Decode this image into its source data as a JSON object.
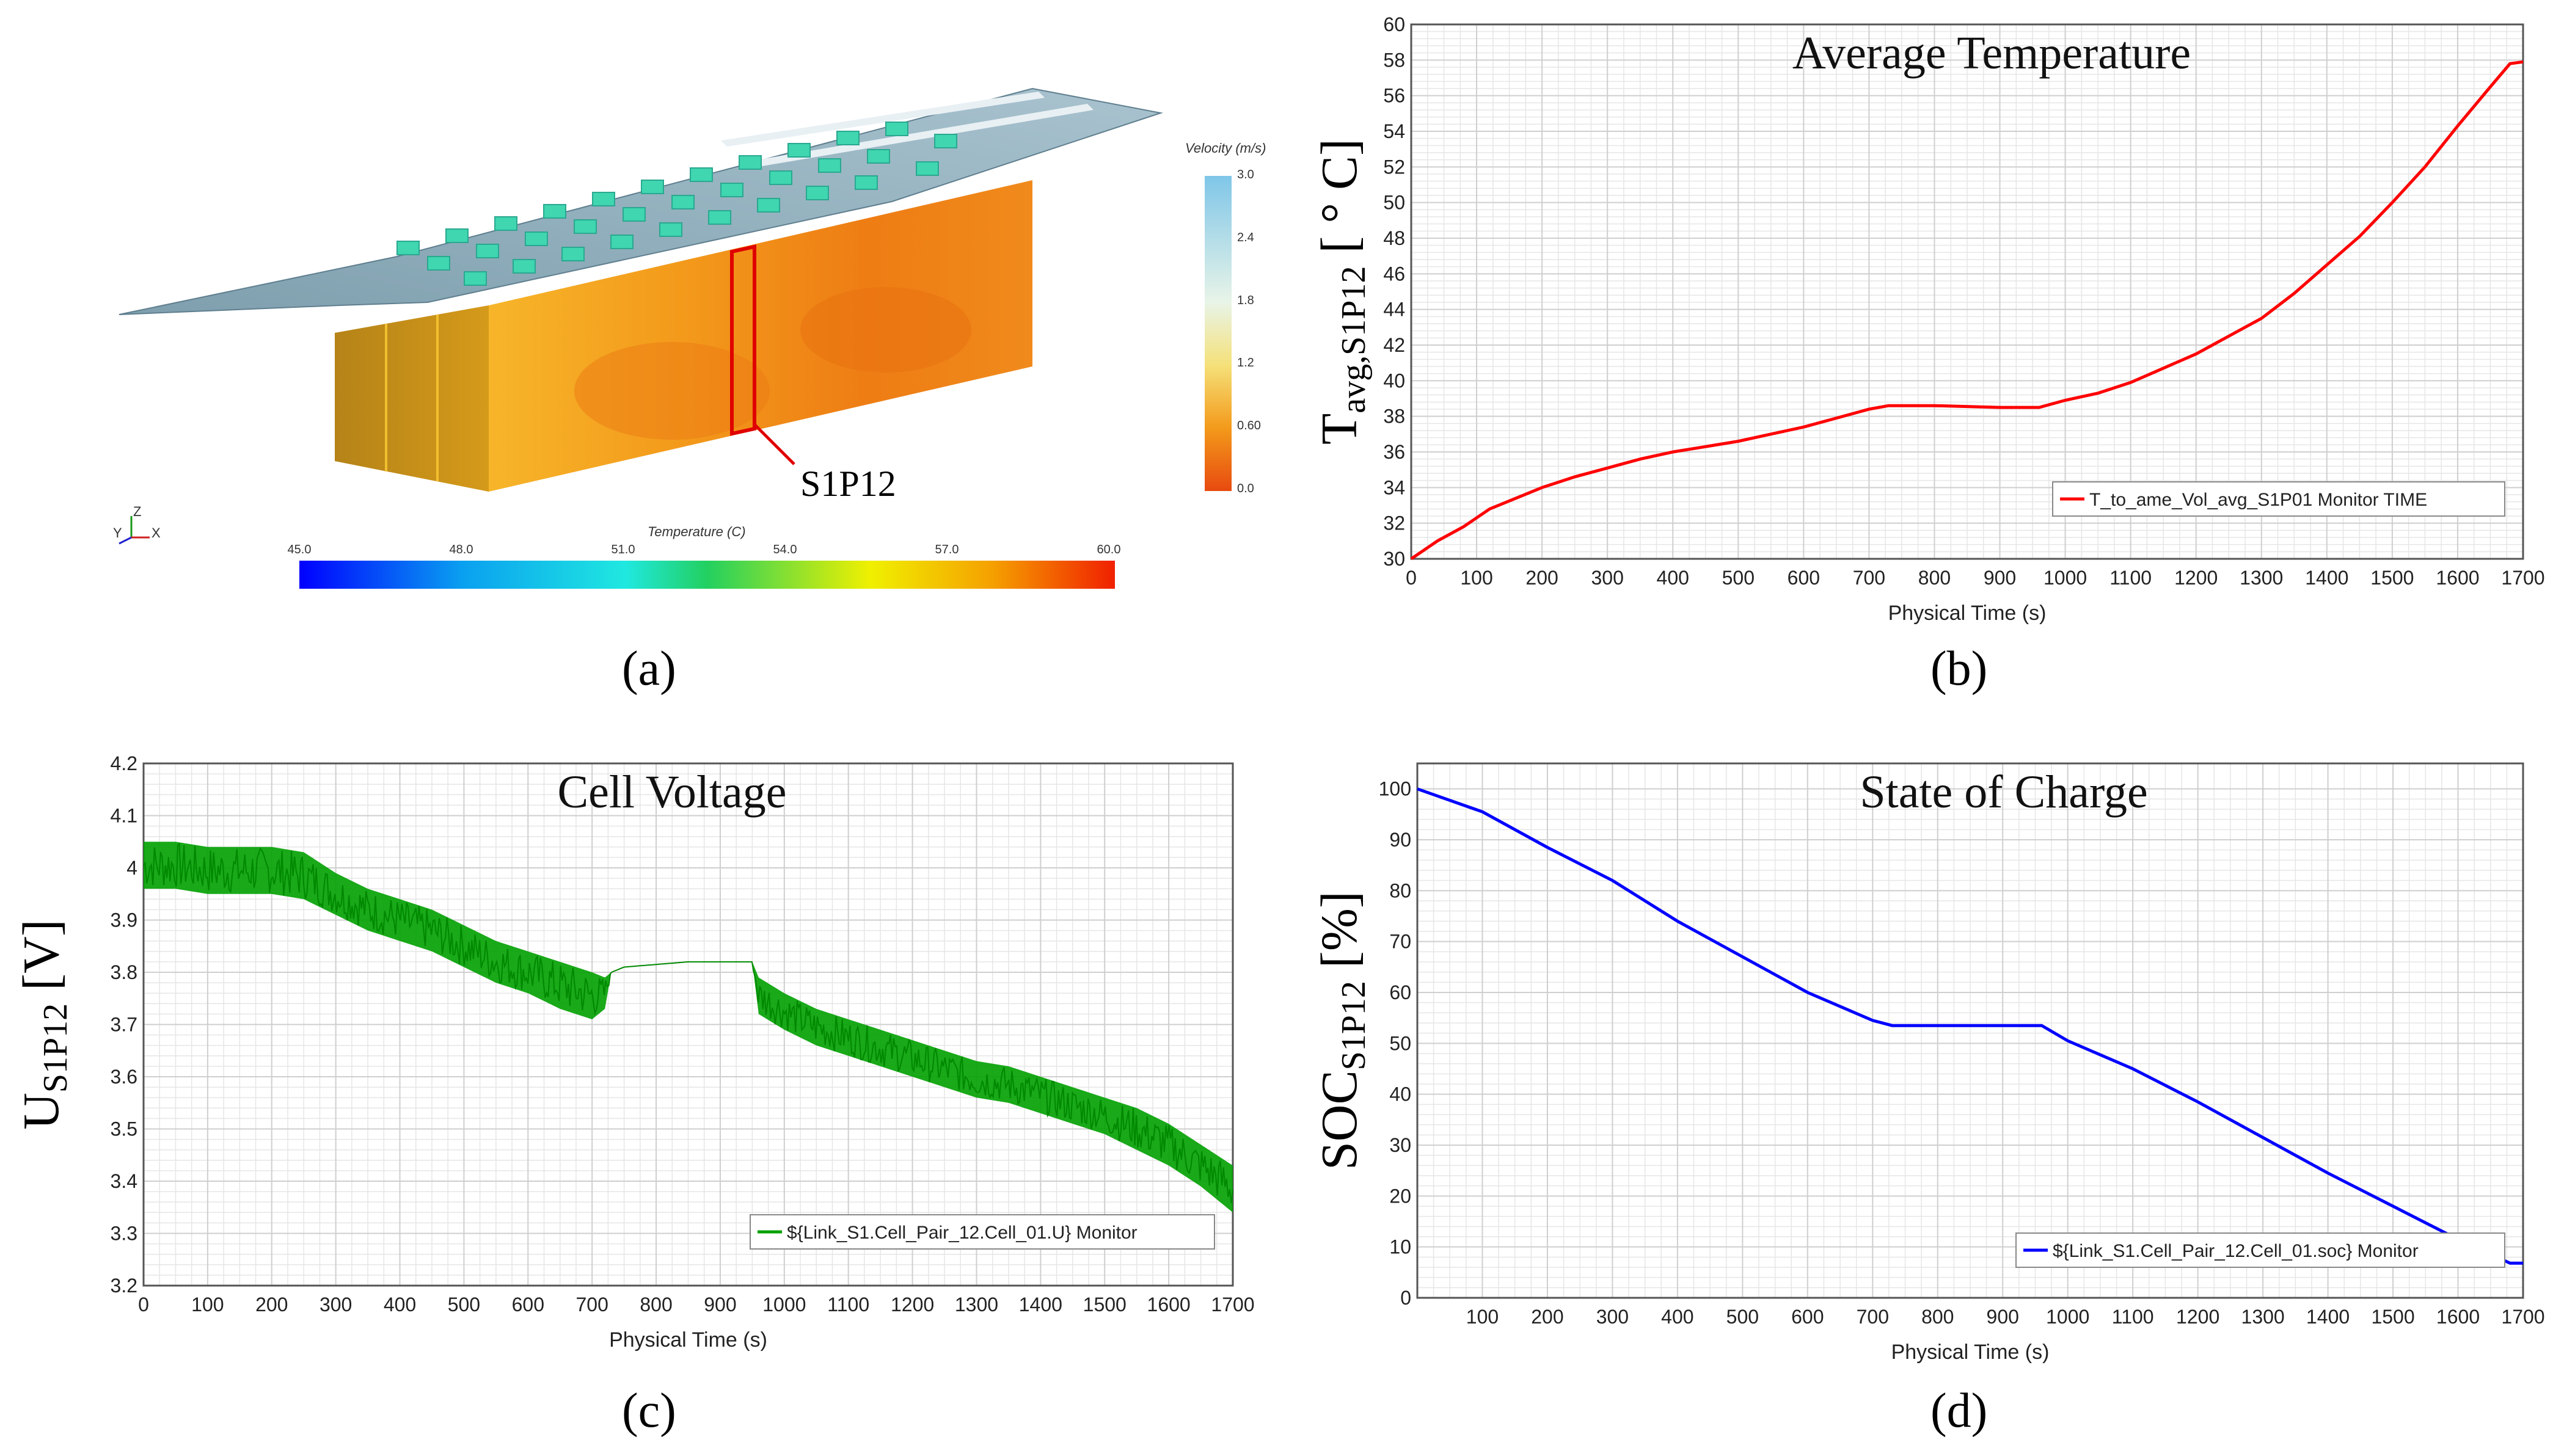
{
  "panel_a": {
    "caption": "(a)",
    "cell_label": "S1P12",
    "velocity_legend": {
      "title": "Velocity (m/s)",
      "ticks": [
        "3.0",
        "2.4",
        "1.8",
        "1.2",
        "0.60",
        "0.0"
      ]
    },
    "temperature_legend": {
      "title": "Temperature (C)",
      "ticks": [
        "45.0",
        "48.0",
        "51.0",
        "54.0",
        "57.0",
        "60.0"
      ]
    },
    "axes_triad": {
      "x": "X",
      "y": "Y",
      "z": "Z"
    }
  },
  "colors": {
    "temperature_line": "#ff0000",
    "voltage_line": "#00a000",
    "soc_line": "#0000ff",
    "grid": "#e6e6e6"
  },
  "chart_data": [
    {
      "id": "b",
      "type": "line",
      "caption": "(b)",
      "title": "Average Temperature",
      "ylabel_main": "T",
      "ylabel_sub": "avg,S1P12",
      "ylabel_unit": "[ ° C]",
      "xlabel": "Physical Time (s)",
      "xlim": [
        0,
        1700
      ],
      "ylim": [
        30,
        60
      ],
      "xticks": [
        0,
        100,
        200,
        300,
        400,
        500,
        600,
        700,
        800,
        900,
        1000,
        1100,
        1200,
        1300,
        1400,
        1500,
        1600,
        1700
      ],
      "yticks": [
        30,
        32,
        34,
        36,
        38,
        40,
        42,
        44,
        46,
        48,
        50,
        52,
        54,
        56,
        58,
        60
      ],
      "grid": true,
      "legend_position": "bottom-right",
      "series": [
        {
          "name": "T_to_ame_Vol_avg_S1P01 Monitor TIME",
          "x": [
            0,
            20,
            40,
            80,
            120,
            160,
            200,
            250,
            300,
            350,
            400,
            450,
            500,
            550,
            600,
            650,
            700,
            730,
            800,
            900,
            960,
            1000,
            1050,
            1100,
            1150,
            1200,
            1250,
            1300,
            1350,
            1400,
            1450,
            1500,
            1550,
            1600,
            1650,
            1680,
            1700
          ],
          "values": [
            30.0,
            30.5,
            31.0,
            31.8,
            32.8,
            33.4,
            34.0,
            34.6,
            35.1,
            35.6,
            36.0,
            36.3,
            36.6,
            37.0,
            37.4,
            37.9,
            38.4,
            38.6,
            38.6,
            38.5,
            38.5,
            38.9,
            39.3,
            39.9,
            40.7,
            41.5,
            42.5,
            43.5,
            44.9,
            46.5,
            48.1,
            50.0,
            52.0,
            54.3,
            56.5,
            57.8,
            57.9
          ]
        }
      ]
    },
    {
      "id": "c",
      "type": "line",
      "caption": "(c)",
      "title": "Cell Voltage",
      "ylabel_main": "U",
      "ylabel_sub": "S1P12",
      "ylabel_unit": "[V]",
      "xlabel": "Physical Time (s)",
      "xlim": [
        0,
        1700
      ],
      "ylim": [
        3.2,
        4.2
      ],
      "xticks": [
        0,
        100,
        200,
        300,
        400,
        500,
        600,
        700,
        800,
        900,
        1000,
        1100,
        1200,
        1300,
        1400,
        1500,
        1600,
        1700
      ],
      "yticks": [
        3.2,
        3.3,
        3.4,
        3.5,
        3.6,
        3.7,
        3.8,
        3.9,
        4,
        4.1,
        4.2
      ],
      "ytick_labels": [
        "3.2",
        "3.3",
        "3.4",
        "3.5",
        "3.6",
        "3.7",
        "3.8",
        "3.9",
        "4",
        "4.1",
        "4.2"
      ],
      "grid": true,
      "legend_position": "bottom-right",
      "series": [
        {
          "name": "${Link_S1.Cell_Pair_12.Cell_01.U} Monitor",
          "x": [
            0,
            50,
            100,
            150,
            200,
            250,
            300,
            350,
            400,
            450,
            500,
            550,
            600,
            650,
            700,
            720,
            730,
            750,
            800,
            850,
            900,
            950,
            960,
            1000,
            1050,
            1100,
            1150,
            1200,
            1250,
            1300,
            1350,
            1400,
            1450,
            1500,
            1550,
            1600,
            1650,
            1700
          ],
          "upper": [
            4.05,
            4.05,
            4.04,
            4.04,
            4.04,
            4.03,
            3.99,
            3.96,
            3.94,
            3.92,
            3.89,
            3.86,
            3.84,
            3.82,
            3.8,
            3.79,
            3.8,
            3.81,
            3.815,
            3.82,
            3.82,
            3.82,
            3.79,
            3.76,
            3.73,
            3.71,
            3.69,
            3.67,
            3.65,
            3.63,
            3.62,
            3.6,
            3.58,
            3.56,
            3.54,
            3.51,
            3.47,
            3.43
          ],
          "lower": [
            3.96,
            3.96,
            3.95,
            3.95,
            3.95,
            3.94,
            3.91,
            3.88,
            3.86,
            3.84,
            3.81,
            3.78,
            3.76,
            3.73,
            3.71,
            3.73,
            3.8,
            3.81,
            3.815,
            3.82,
            3.82,
            3.82,
            3.72,
            3.69,
            3.66,
            3.64,
            3.62,
            3.6,
            3.58,
            3.56,
            3.55,
            3.53,
            3.51,
            3.49,
            3.46,
            3.43,
            3.39,
            3.34
          ]
        }
      ]
    },
    {
      "id": "d",
      "type": "line",
      "caption": "(d)",
      "title": "State of Charge",
      "ylabel_main": "SOC",
      "ylabel_sub": "S1P12",
      "ylabel_unit": "[%]",
      "xlabel": "Physical Time (s)",
      "xlim": [
        0,
        1700
      ],
      "ylim": [
        0,
        105
      ],
      "xticks": [
        100,
        200,
        300,
        400,
        500,
        600,
        700,
        800,
        900,
        1000,
        1100,
        1200,
        1300,
        1400,
        1500,
        1600,
        1700
      ],
      "yticks": [
        0,
        10,
        20,
        30,
        40,
        50,
        60,
        70,
        80,
        90,
        100
      ],
      "grid": true,
      "legend_position": "bottom-right",
      "series": [
        {
          "name": "${Link_S1.Cell_Pair_12.Cell_01.soc} Monitor",
          "x": [
            0,
            100,
            200,
            300,
            400,
            500,
            600,
            700,
            730,
            800,
            900,
            960,
            1000,
            1100,
            1200,
            1300,
            1400,
            1500,
            1600,
            1680,
            1700
          ],
          "values": [
            100,
            95.5,
            88.5,
            82,
            74,
            67,
            60,
            54.5,
            53.5,
            53.5,
            53.5,
            53.5,
            50.5,
            45,
            38.5,
            31.5,
            24.5,
            18,
            11.5,
            6.8,
            6.8
          ]
        }
      ]
    }
  ]
}
